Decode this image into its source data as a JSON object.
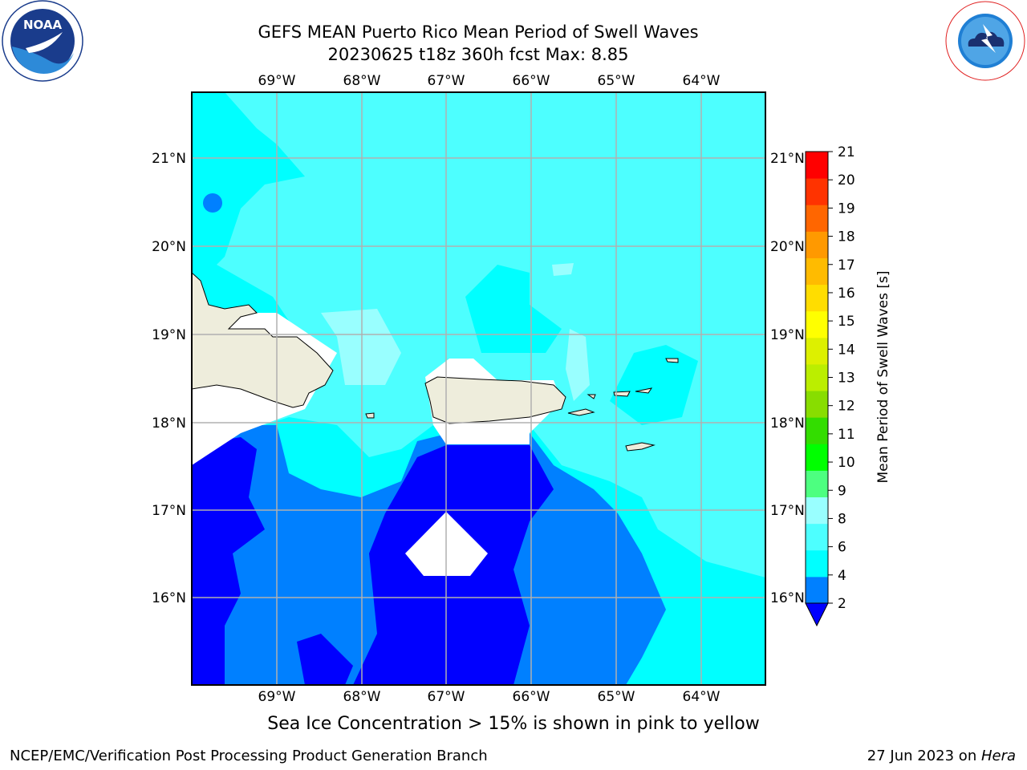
{
  "title_line1": "GEFS MEAN Puerto Rico Mean Period of Swell Waves",
  "title_line2": "20230625 t18z 360h fcst   Max: 8.85",
  "subtitle": "Sea Ice Concentration > 15% is shown in pink to yellow",
  "footer_left": "NCEP/EMC/Verification Post Processing Product Generation Branch",
  "footer_right_date": "27 Jun 2023 on ",
  "footer_right_machine": "Hera",
  "logos": {
    "left": "NOAA",
    "right": "NATIONAL WEATHER SERVICE"
  },
  "colors": {
    "land": "#eeeddc",
    "grid": "#b0b0b0",
    "range_2_4": "#0080ff",
    "range_lt2": "#0000ff",
    "range_4_6": "#00ffff",
    "range_6_8": "#4dffff",
    "range_8_9": "#99ffff"
  },
  "map": {
    "lon_labels": [
      "69°W",
      "68°W",
      "67°W",
      "66°W",
      "65°W",
      "64°W"
    ],
    "lat_labels": [
      "21°N",
      "20°N",
      "19°N",
      "18°N",
      "17°N",
      "16°N"
    ]
  },
  "colorbar": {
    "label": "Mean Period of Swell Waves [s]",
    "ticks": [
      "2",
      "4",
      "6",
      "8",
      "9",
      "10",
      "11",
      "12",
      "13",
      "14",
      "15",
      "16",
      "17",
      "18",
      "19",
      "20",
      "21"
    ],
    "colors": [
      "#0080ff",
      "#00ffff",
      "#4dffff",
      "#99ffff",
      "#4dff80",
      "#00ff00",
      "#33dd00",
      "#88dd00",
      "#bbee00",
      "#ddf000",
      "#ffff00",
      "#ffdd00",
      "#ffbb00",
      "#ff9900",
      "#ff6600",
      "#ff3300",
      "#ff0000"
    ],
    "extend_color": "#0000ff"
  }
}
